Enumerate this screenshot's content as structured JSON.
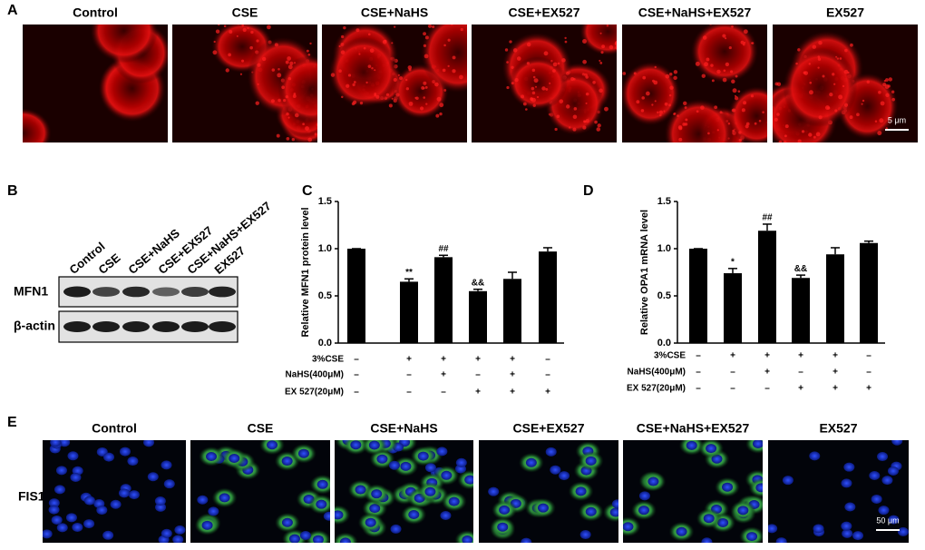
{
  "panel_labels": [
    "A",
    "B",
    "C",
    "D",
    "E"
  ],
  "micrographs_mito": {
    "titles": [
      "Control",
      "CSE",
      "CSE+NaHS",
      "CSE+EX527",
      "CSE+NaHS+EX527",
      "EX527"
    ],
    "scale_bar": "5 μm"
  },
  "western_blot": {
    "lanes": [
      "Control",
      "CSE",
      "CSE+NaHS",
      "CSE+EX527",
      "CSE+NaHS+EX527",
      "EX527"
    ],
    "rows": [
      "MFN1",
      "β-actin"
    ]
  },
  "chart_data": [
    {
      "type": "bar",
      "y_label": "Relative MFN1 protein level",
      "color": "#000000",
      "values": [
        1.0,
        0.65,
        0.91,
        0.55,
        0.68,
        0.97
      ],
      "errors": [
        0,
        0.03,
        0.02,
        0.02,
        0.07,
        0.04
      ],
      "annotations": [
        null,
        "**",
        "##",
        "&&",
        null,
        null
      ],
      "ylim": [
        0,
        1.5
      ],
      "yticks": [
        {
          "value": 0,
          "label": "0.0"
        },
        0.5,
        {
          "value": 1,
          "label": "1.0"
        },
        1.5
      ],
      "treatments": [
        {
          "name": "3%CSE",
          "signs": [
            "–",
            "+",
            "+",
            "+",
            "+",
            "–"
          ]
        },
        {
          "name": "NaHS(400μM)",
          "signs": [
            "–",
            "–",
            "+",
            "–",
            "+",
            "–"
          ]
        },
        {
          "name": "EX 527(20μM)",
          "signs": [
            "–",
            "–",
            "–",
            "+",
            "+",
            "+"
          ]
        }
      ]
    },
    {
      "type": "bar",
      "y_label": "Relative OPA1 mRNA level",
      "color": "#000000",
      "values": [
        1.0,
        0.74,
        1.19,
        0.69,
        0.94,
        1.06
      ],
      "errors": [
        0,
        0.05,
        0.07,
        0.03,
        0.07,
        0.02
      ],
      "annotations": [
        null,
        "*",
        "##",
        "&&",
        null,
        null
      ],
      "ylim": [
        0,
        1.5
      ],
      "yticks": [
        {
          "value": 0,
          "label": "0.0"
        },
        0.5,
        {
          "value": 1,
          "label": "1.0"
        },
        1.5
      ],
      "treatments": [
        {
          "name": "3%CSE",
          "signs": [
            "–",
            "+",
            "+",
            "+",
            "+",
            "–"
          ]
        },
        {
          "name": "NaHS(400μM)",
          "signs": [
            "–",
            "–",
            "+",
            "–",
            "+",
            "–"
          ]
        },
        {
          "name": "EX 527(20μM)",
          "signs": [
            "–",
            "–",
            "–",
            "+",
            "+",
            "+"
          ]
        }
      ]
    }
  ],
  "micrographs_fis1": {
    "row_label": "FIS1",
    "titles": [
      "Control",
      "CSE",
      "CSE+NaHS",
      "CSE+EX527",
      "CSE+NaHS+EX527",
      "EX527"
    ],
    "scale_bar": "50 μm"
  }
}
